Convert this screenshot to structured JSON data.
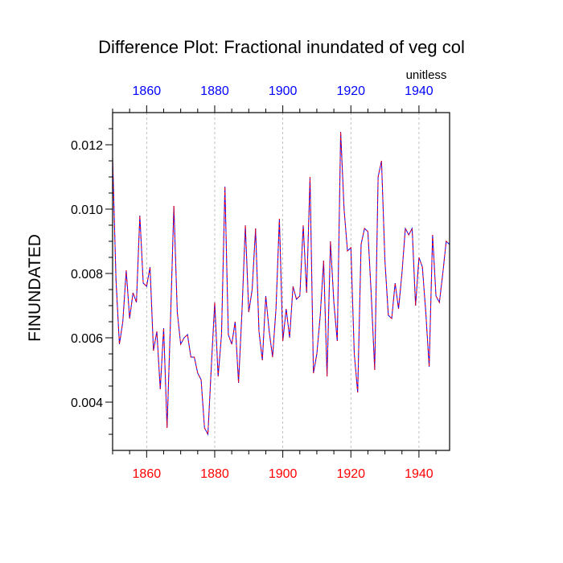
{
  "chart_data": {
    "type": "line",
    "title": "Difference Plot: Fractional inundated of veg col",
    "units_label": "unitless",
    "ylabel": "FINUNDATED",
    "xlabel": "",
    "xlim": [
      1850,
      1949
    ],
    "ylim": [
      0.0025,
      0.013
    ],
    "x_ticks": [
      1860,
      1880,
      1900,
      1920,
      1940
    ],
    "x_tick_labels": [
      "1860",
      "1880",
      "1900",
      "1920",
      "1940"
    ],
    "y_ticks": [
      0.004,
      0.006,
      0.008,
      0.01,
      0.012
    ],
    "y_tick_labels": [
      "0.004",
      "0.006",
      "0.008",
      "0.010",
      "0.012"
    ],
    "top_tick_color": "#0000ff",
    "bottom_tick_color": "#ff0000",
    "grid_color": "#b0b0b0",
    "series": [
      {
        "name": "difference",
        "color": "#0000ff",
        "dash_color": "#ff0000",
        "x": [
          1850,
          1851,
          1852,
          1853,
          1854,
          1855,
          1856,
          1857,
          1858,
          1859,
          1860,
          1861,
          1862,
          1863,
          1864,
          1865,
          1866,
          1867,
          1868,
          1869,
          1870,
          1871,
          1872,
          1873,
          1874,
          1875,
          1876,
          1877,
          1878,
          1879,
          1880,
          1881,
          1882,
          1883,
          1884,
          1885,
          1886,
          1887,
          1888,
          1889,
          1890,
          1891,
          1892,
          1893,
          1894,
          1895,
          1896,
          1897,
          1898,
          1899,
          1900,
          1901,
          1902,
          1903,
          1904,
          1905,
          1906,
          1907,
          1908,
          1909,
          1910,
          1911,
          1912,
          1913,
          1914,
          1915,
          1916,
          1917,
          1918,
          1919,
          1920,
          1921,
          1922,
          1923,
          1924,
          1925,
          1926,
          1927,
          1928,
          1929,
          1930,
          1931,
          1932,
          1933,
          1934,
          1935,
          1936,
          1937,
          1938,
          1939,
          1940,
          1941,
          1942,
          1943,
          1944,
          1945,
          1946,
          1947,
          1948,
          1949
        ],
        "values": [
          0.0116,
          0.0078,
          0.0058,
          0.0065,
          0.0081,
          0.0066,
          0.0074,
          0.0071,
          0.0098,
          0.0077,
          0.0076,
          0.0082,
          0.0056,
          0.0062,
          0.0044,
          0.0063,
          0.0032,
          0.0065,
          0.0101,
          0.0068,
          0.0058,
          0.006,
          0.0061,
          0.0054,
          0.0054,
          0.0049,
          0.0047,
          0.0032,
          0.003,
          0.0051,
          0.0071,
          0.0048,
          0.0061,
          0.0107,
          0.0061,
          0.0058,
          0.0065,
          0.0046,
          0.0068,
          0.0095,
          0.0068,
          0.0075,
          0.0094,
          0.0062,
          0.0053,
          0.0073,
          0.0062,
          0.0054,
          0.0069,
          0.0097,
          0.0059,
          0.0069,
          0.006,
          0.0076,
          0.0072,
          0.0073,
          0.0095,
          0.0074,
          0.011,
          0.0049,
          0.0055,
          0.0067,
          0.0084,
          0.0048,
          0.009,
          0.0071,
          0.0059,
          0.0124,
          0.01,
          0.0087,
          0.0088,
          0.0055,
          0.0043,
          0.0089,
          0.0094,
          0.0093,
          0.0073,
          0.005,
          0.011,
          0.0115,
          0.0084,
          0.0067,
          0.0066,
          0.0077,
          0.0069,
          0.008,
          0.0094,
          0.0092,
          0.0094,
          0.007,
          0.0085,
          0.0082,
          0.0068,
          0.0051,
          0.0092,
          0.0073,
          0.0071,
          0.008,
          0.009,
          0.0089
        ]
      }
    ]
  }
}
